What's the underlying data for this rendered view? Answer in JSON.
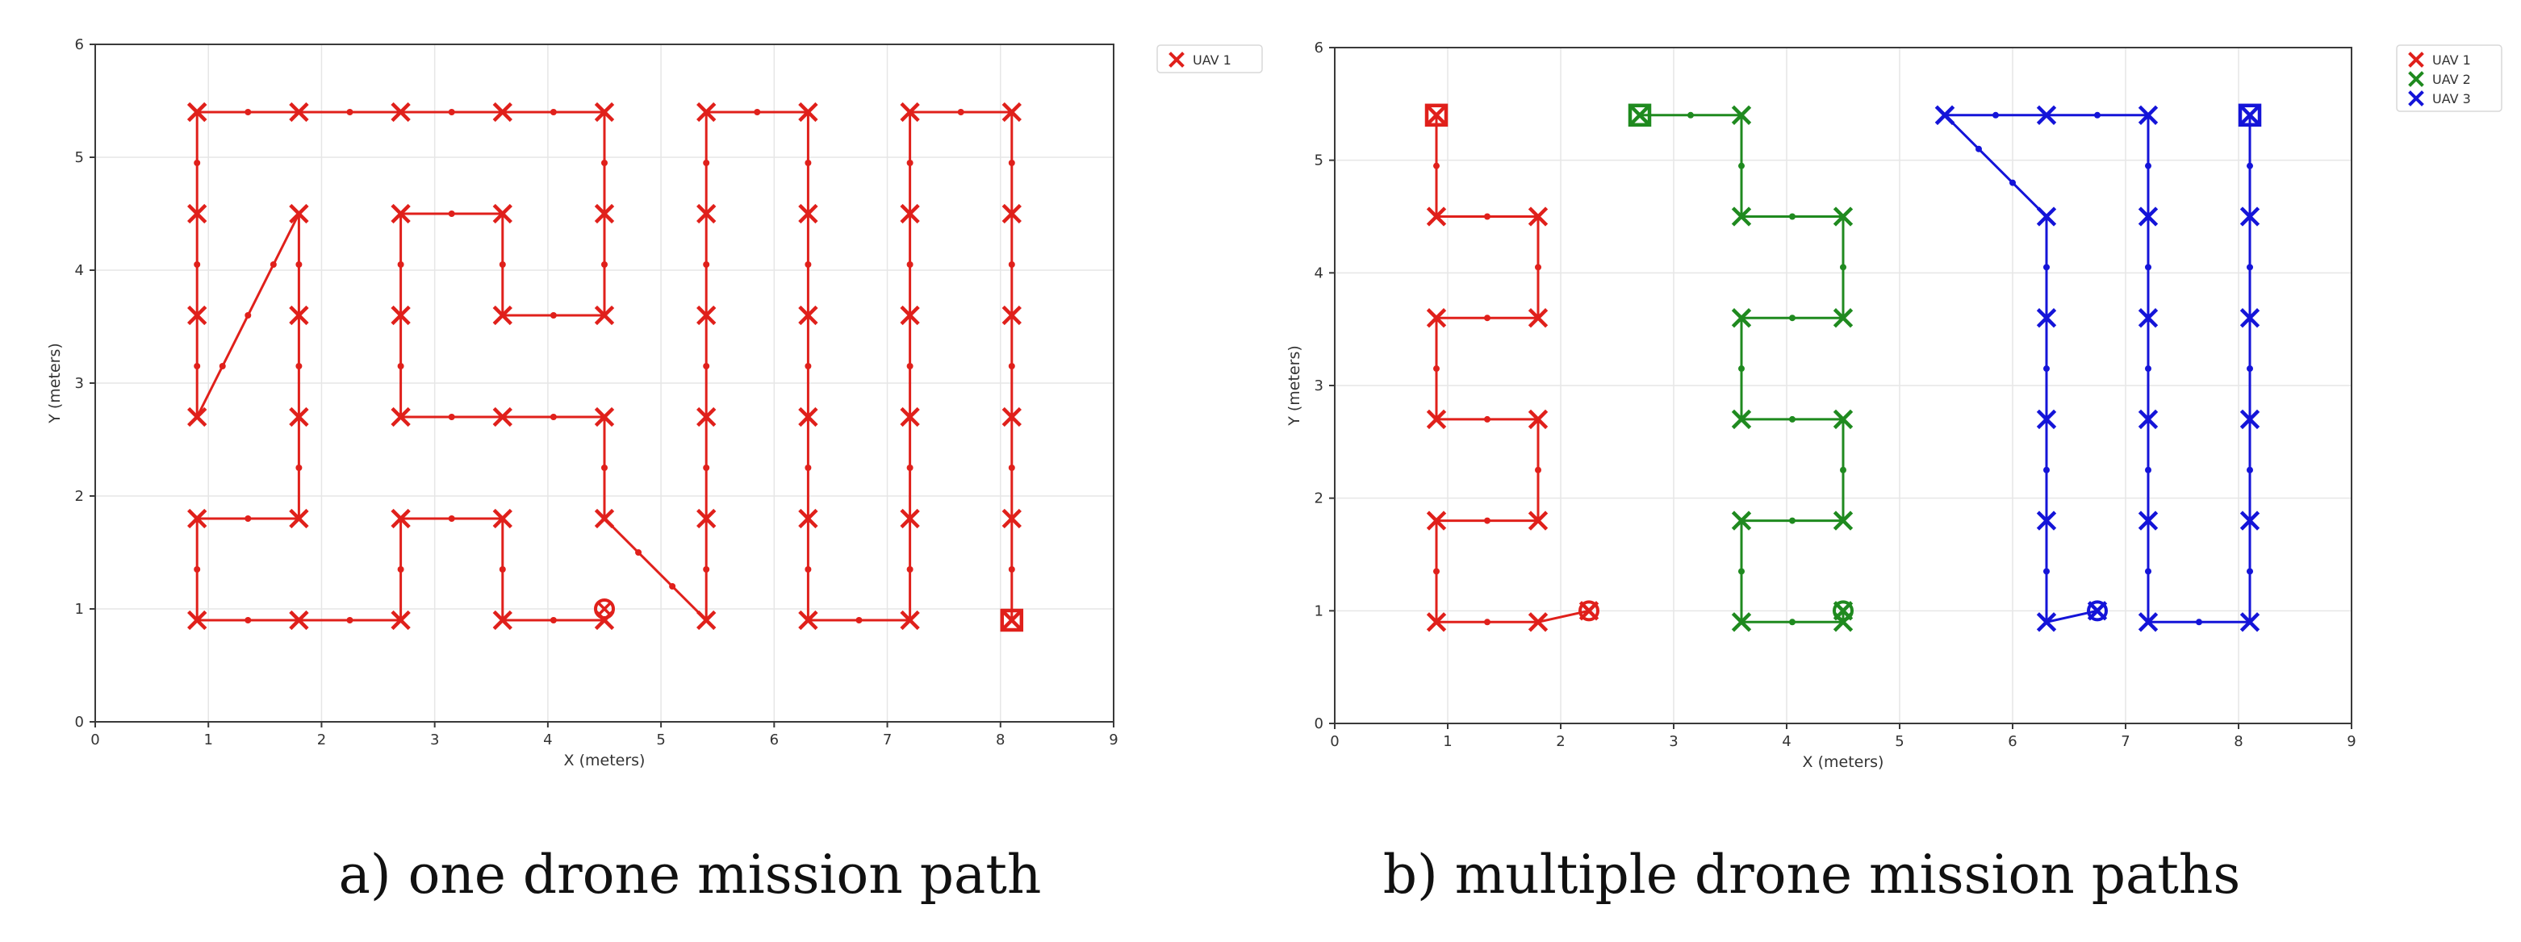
{
  "chart_data": [
    {
      "type": "line",
      "title": "",
      "xlabel": "X (meters)",
      "ylabel": "Y (meters)",
      "xlim": [
        0,
        9
      ],
      "ylim": [
        0,
        6
      ],
      "xticks": [
        "0",
        "1",
        "2",
        "3",
        "4",
        "5",
        "6",
        "7",
        "8",
        "9"
      ],
      "yticks": [
        "0",
        "1",
        "2",
        "3",
        "4",
        "5",
        "6"
      ],
      "grid": true,
      "legend_position": "outside-top-right",
      "caption": "a) one drone mission path",
      "series": [
        {
          "name": "UAV 1",
          "color": "#e0201b",
          "path": [
            [
              0.9,
              5.4
            ],
            [
              1.8,
              5.4
            ],
            [
              2.7,
              5.4
            ],
            [
              3.6,
              5.4
            ],
            [
              4.5,
              5.4
            ],
            [
              4.5,
              4.5
            ],
            [
              4.5,
              3.6
            ],
            [
              3.6,
              3.6
            ],
            [
              3.6,
              4.5
            ],
            [
              2.7,
              4.5
            ],
            [
              2.7,
              3.6
            ],
            [
              2.7,
              2.7
            ],
            [
              3.6,
              2.7
            ],
            [
              4.5,
              2.7
            ],
            [
              4.5,
              1.8
            ],
            [
              5.4,
              0.9
            ],
            [
              5.4,
              1.8
            ],
            [
              5.4,
              2.7
            ],
            [
              5.4,
              3.6
            ],
            [
              5.4,
              4.5
            ],
            [
              5.4,
              5.4
            ],
            [
              6.3,
              5.4
            ],
            [
              6.3,
              4.5
            ],
            [
              6.3,
              3.6
            ],
            [
              6.3,
              2.7
            ],
            [
              6.3,
              1.8
            ],
            [
              6.3,
              0.9
            ],
            [
              7.2,
              0.9
            ],
            [
              7.2,
              1.8
            ],
            [
              7.2,
              2.7
            ],
            [
              7.2,
              3.6
            ],
            [
              7.2,
              4.5
            ],
            [
              7.2,
              5.4
            ],
            [
              8.1,
              5.4
            ],
            [
              8.1,
              4.5
            ],
            [
              8.1,
              3.6
            ],
            [
              8.1,
              2.7
            ],
            [
              8.1,
              1.8
            ],
            [
              8.1,
              0.9
            ]
          ],
          "path_start": [
            [
              0.9,
              5.4
            ],
            [
              0.9,
              4.5
            ],
            [
              0.9,
              3.6
            ],
            [
              0.9,
              2.7
            ],
            [
              1.8,
              4.5
            ],
            [
              1.8,
              3.6
            ],
            [
              1.8,
              2.7
            ],
            [
              1.8,
              1.8
            ],
            [
              0.9,
              1.8
            ],
            [
              0.9,
              0.9
            ],
            [
              1.8,
              0.9
            ],
            [
              2.7,
              0.9
            ],
            [
              2.7,
              1.8
            ],
            [
              3.6,
              1.8
            ],
            [
              3.6,
              0.9
            ],
            [
              4.5,
              0.9
            ]
          ],
          "start": [
            8.1,
            0.9
          ],
          "end": [
            4.5,
            1.0
          ]
        }
      ]
    },
    {
      "type": "line",
      "title": "",
      "xlabel": "X (meters)",
      "ylabel": "Y (meters)",
      "xlim": [
        0,
        9
      ],
      "ylim": [
        0,
        6
      ],
      "xticks": [
        "0",
        "1",
        "2",
        "3",
        "4",
        "5",
        "6",
        "7",
        "8",
        "9"
      ],
      "yticks": [
        "0",
        "1",
        "2",
        "3",
        "4",
        "5",
        "6"
      ],
      "grid": true,
      "legend_position": "outside-top-right",
      "caption": "b) multiple drone mission paths",
      "series": [
        {
          "name": "UAV 1",
          "color": "#e0201b",
          "path": [
            [
              0.9,
              5.4
            ],
            [
              0.9,
              4.5
            ],
            [
              1.8,
              4.5
            ],
            [
              1.8,
              3.6
            ],
            [
              0.9,
              3.6
            ],
            [
              0.9,
              2.7
            ],
            [
              1.8,
              2.7
            ],
            [
              1.8,
              1.8
            ],
            [
              0.9,
              1.8
            ],
            [
              0.9,
              0.9
            ],
            [
              1.8,
              0.9
            ],
            [
              2.25,
              1.0
            ]
          ],
          "start": [
            0.9,
            5.4
          ],
          "end": [
            2.25,
            1.0
          ]
        },
        {
          "name": "UAV 2",
          "color": "#1f8a1f",
          "path": [
            [
              2.7,
              5.4
            ],
            [
              3.6,
              5.4
            ],
            [
              3.6,
              4.5
            ],
            [
              4.5,
              4.5
            ],
            [
              4.5,
              3.6
            ],
            [
              3.6,
              3.6
            ],
            [
              3.6,
              2.7
            ],
            [
              4.5,
              2.7
            ],
            [
              4.5,
              1.8
            ],
            [
              3.6,
              1.8
            ],
            [
              3.6,
              0.9
            ],
            [
              4.5,
              0.9
            ],
            [
              4.5,
              1.0
            ]
          ],
          "start": [
            2.7,
            5.4
          ],
          "end": [
            4.5,
            1.0
          ]
        },
        {
          "name": "UAV 3",
          "color": "#1414d8",
          "path": [
            [
              5.4,
              5.4
            ],
            [
              6.3,
              5.4
            ],
            [
              7.2,
              5.4
            ],
            [
              7.2,
              4.5
            ],
            [
              7.2,
              3.6
            ],
            [
              7.2,
              2.7
            ],
            [
              7.2,
              1.8
            ],
            [
              7.2,
              0.9
            ],
            [
              8.1,
              0.9
            ],
            [
              8.1,
              1.8
            ],
            [
              8.1,
              2.7
            ],
            [
              8.1,
              3.6
            ],
            [
              8.1,
              4.5
            ],
            [
              8.1,
              5.4
            ]
          ],
          "path_start": [
            [
              5.4,
              5.4
            ],
            [
              6.3,
              4.5
            ],
            [
              6.3,
              3.6
            ],
            [
              6.3,
              2.7
            ],
            [
              6.3,
              1.8
            ],
            [
              6.3,
              0.9
            ],
            [
              6.75,
              1.0
            ]
          ],
          "start": [
            8.1,
            5.4
          ],
          "end": [
            6.75,
            1.0
          ]
        }
      ]
    }
  ]
}
